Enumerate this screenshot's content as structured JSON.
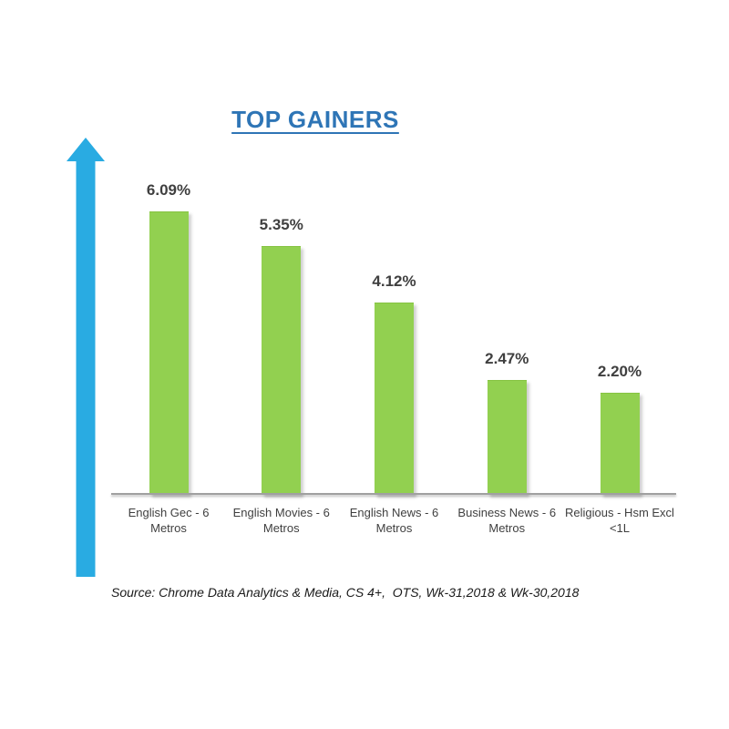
{
  "title": "TOP GAINERS",
  "source_note": "Source: Chrome Data Analytics & Media, CS 4+,  OTS, Wk-31,2018 & Wk-30,2018",
  "icons": {
    "up_arrow": "up-arrow-icon"
  },
  "colors": {
    "bar": "#92D050",
    "arrow": "#29ABE2",
    "title": "#2E75B6",
    "axis": "#A0A0A0",
    "label": "#3F3F3F",
    "source": "#1A1A1A"
  },
  "chart_data": {
    "type": "bar",
    "title": "TOP GAINERS",
    "categories": [
      "English Gec - 6 Metros",
      "English Movies - 6 Metros",
      "English News - 6 Metros",
      "Business News - 6 Metros",
      "Religious - Hsm Excl <1L"
    ],
    "values": [
      6.09,
      5.35,
      4.12,
      2.47,
      2.2
    ],
    "data_labels": [
      "6.09%",
      "5.35%",
      "4.12%",
      "2.47%",
      "2.20%"
    ],
    "xlabel": "",
    "ylabel": "",
    "ylim": [
      0,
      6.5
    ],
    "grid": false,
    "legend": false,
    "bar_color": "#92D050",
    "sorted": "descending"
  }
}
